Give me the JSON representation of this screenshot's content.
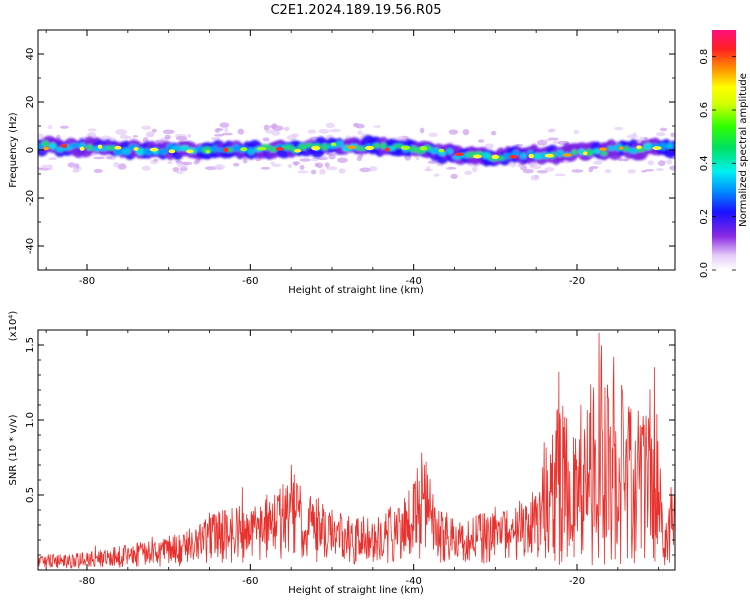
{
  "title": "C2E1.2024.189.19.56.R05",
  "chart_data": [
    {
      "type": "heatmap",
      "xlabel": "Height of straight line (km)",
      "ylabel": "Frequency (Hz)",
      "xlim": [
        -86,
        -8
      ],
      "ylim": [
        -50,
        50
      ],
      "xticks": [
        "-80",
        "-60",
        "-40",
        "-20"
      ],
      "yticks": [
        "40",
        "20",
        "0",
        "-20",
        "-40"
      ],
      "colorbar": {
        "label": "Normalized spectral amplitude",
        "range": [
          0,
          0.9
        ],
        "ticks": [
          "0.0",
          "0.2",
          "0.4",
          "0.6",
          "0.8"
        ]
      },
      "band": {
        "center_hz": [
          [
            -86,
            1.5
          ],
          [
            -80,
            1.0
          ],
          [
            -75,
            0.0
          ],
          [
            -70,
            0.0
          ],
          [
            -65,
            0.0
          ],
          [
            -60,
            0.0
          ],
          [
            -55,
            0.5
          ],
          [
            -50,
            1.5
          ],
          [
            -45,
            1.5
          ],
          [
            -40,
            0.5
          ],
          [
            -35,
            -2.0
          ],
          [
            -30,
            -2.5
          ],
          [
            -25,
            -2.0
          ],
          [
            -20,
            -1.0
          ],
          [
            -15,
            0.0
          ],
          [
            -10,
            0.5
          ],
          [
            -8,
            1.0
          ]
        ],
        "halfwidth_hz": 4
      }
    },
    {
      "type": "line",
      "xlabel": "Height of straight line (km)",
      "ylabel": "SNR (10 * v/v)",
      "y_multiplier": "(x10⁴)",
      "xlim": [
        -86,
        -8
      ],
      "ylim": [
        0,
        1.6
      ],
      "xticks": [
        "-80",
        "-60",
        "-40",
        "-20"
      ],
      "yticks": [
        "0.5",
        "1.0",
        "1.5"
      ],
      "color": "#e8302c",
      "envelope": [
        [
          -86,
          0.1
        ],
        [
          -80,
          0.12
        ],
        [
          -76,
          0.16
        ],
        [
          -72,
          0.2
        ],
        [
          -68,
          0.26
        ],
        [
          -65,
          0.38
        ],
        [
          -62,
          0.45
        ],
        [
          -60,
          0.42
        ],
        [
          -58,
          0.48
        ],
        [
          -56,
          0.58
        ],
        [
          -55,
          0.68
        ],
        [
          -53,
          0.55
        ],
        [
          -50,
          0.4
        ],
        [
          -47,
          0.35
        ],
        [
          -44,
          0.4
        ],
        [
          -42,
          0.45
        ],
        [
          -40,
          0.6
        ],
        [
          -39,
          0.78
        ],
        [
          -38.5,
          0.72
        ],
        [
          -37,
          0.4
        ],
        [
          -34,
          0.35
        ],
        [
          -30,
          0.4
        ],
        [
          -27,
          0.45
        ],
        [
          -25,
          0.55
        ],
        [
          -24,
          0.85
        ],
        [
          -23,
          0.9
        ],
        [
          -22.2,
          1.3
        ],
        [
          -21,
          0.95
        ],
        [
          -19,
          1.1
        ],
        [
          -17.2,
          1.58
        ],
        [
          -16,
          1.15
        ],
        [
          -15,
          1.4
        ],
        [
          -14,
          1.2
        ],
        [
          -12,
          1.05
        ],
        [
          -10.5,
          1.35
        ],
        [
          -9.5,
          0.45
        ],
        [
          -8,
          0.55
        ]
      ],
      "peaks": [
        [
          -86,
          0.12
        ],
        [
          -79,
          0.16
        ],
        [
          -72,
          0.22
        ],
        [
          -65,
          0.38
        ],
        [
          -61,
          0.55
        ],
        [
          -58,
          0.5
        ],
        [
          -55,
          0.7
        ],
        [
          -50,
          0.4
        ],
        [
          -47,
          0.33
        ],
        [
          -43,
          0.35
        ],
        [
          -41,
          0.45
        ],
        [
          -39,
          0.78
        ],
        [
          -38.5,
          0.72
        ],
        [
          -30,
          0.42
        ],
        [
          -27,
          0.46
        ],
        [
          -24,
          0.85
        ],
        [
          -23,
          0.9
        ],
        [
          -22.2,
          1.32
        ],
        [
          -19.5,
          1.1
        ],
        [
          -17.3,
          1.58
        ],
        [
          -16.2,
          1.15
        ],
        [
          -15.5,
          1.42
        ],
        [
          -14.5,
          1.2
        ],
        [
          -13.5,
          1.05
        ],
        [
          -12,
          0.95
        ],
        [
          -10.5,
          1.35
        ],
        [
          -9.6,
          0.45
        ],
        [
          -8.5,
          0.55
        ]
      ]
    }
  ]
}
